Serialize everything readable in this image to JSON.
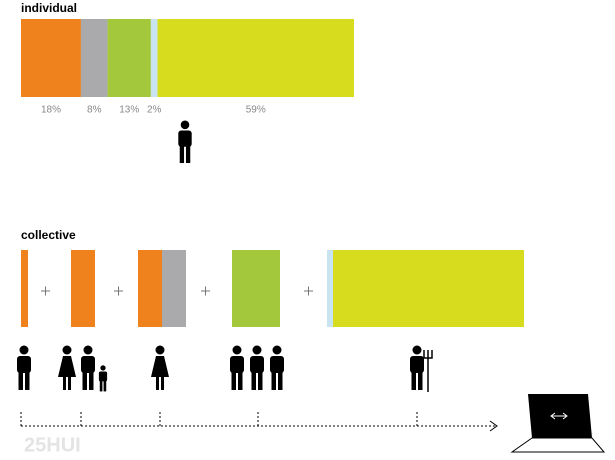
{
  "chart_data": {
    "type": "stacked-bar",
    "title": "individual",
    "values": [
      18,
      8,
      13,
      2,
      59
    ],
    "value_labels": [
      "18%",
      "8%",
      "13%",
      "2%",
      "59%"
    ],
    "colors": [
      "#f0821e",
      "#aaa9ab",
      "#a3c83c",
      "#c8e4f0",
      "#d8dc1e"
    ],
    "xlim": [
      0,
      100
    ]
  },
  "collective": {
    "title": "collective"
  },
  "watermark": "25HUI"
}
